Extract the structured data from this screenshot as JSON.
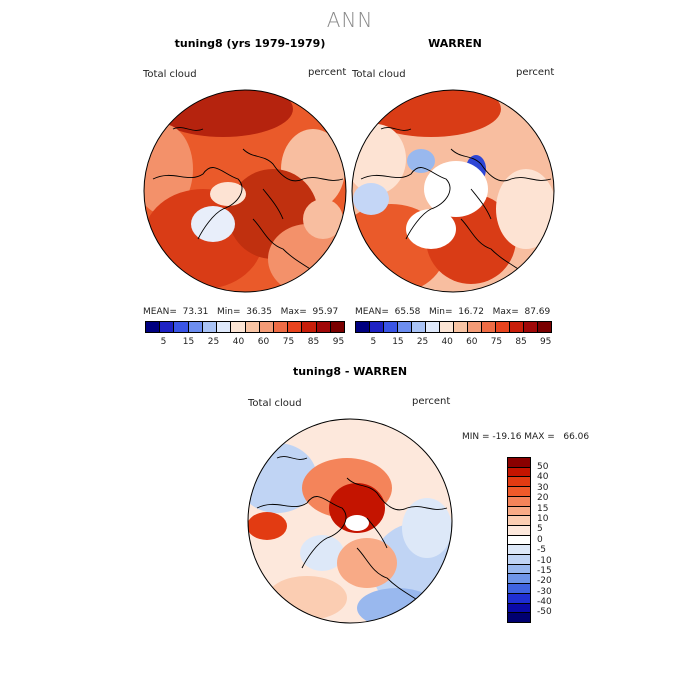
{
  "figure_title": "ANN",
  "panel_left": {
    "title": "tuning8 (yrs 1979-1979)",
    "variable": "Total cloud",
    "units": "percent",
    "stats": {
      "mean_label": "MEAN=",
      "mean": "73.31",
      "min_label": "Min=",
      "min": "36.35",
      "max_label": "Max=",
      "max": "95.97"
    }
  },
  "panel_right": {
    "title": "WARREN",
    "variable": "Total cloud",
    "units": "percent",
    "stats": {
      "mean_label": "MEAN=",
      "mean": "65.58",
      "min_label": "Min=",
      "min": "16.72",
      "max_label": "Max=",
      "max": "87.69"
    }
  },
  "panel_diff": {
    "title": "tuning8 - WARREN",
    "variable": "Total cloud",
    "units": "percent",
    "minmax_text": "MIN = -19.16 MAX =   66.06"
  },
  "colorbar_abs": {
    "ticks": [
      "5",
      "15",
      "25",
      "40",
      "60",
      "75",
      "85",
      "95"
    ],
    "colors": [
      "#000080",
      "#1e22c4",
      "#3a55e6",
      "#6d8ef0",
      "#a9c3f6",
      "#dfe9fb",
      "#fbe4d4",
      "#f8c4a4",
      "#f39b76",
      "#ee6c45",
      "#e8441e",
      "#c81e0a",
      "#a00808",
      "#7a0000"
    ]
  },
  "colorbar_diff": {
    "ticks": [
      "50",
      "40",
      "30",
      "20",
      "15",
      "10",
      "5",
      "0",
      "-5",
      "-10",
      "-15",
      "-20",
      "-30",
      "-40",
      "-50"
    ],
    "colors": [
      "#8a0000",
      "#c41400",
      "#e23b12",
      "#ef5a2a",
      "#f4845a",
      "#f8aa86",
      "#fbcdb2",
      "#fde8dc",
      "#ffffff",
      "#dde8f8",
      "#c0d4f4",
      "#99b8ee",
      "#6e95e8",
      "#3f63e0",
      "#1f2fd2",
      "#0a0aa8",
      "#000070"
    ]
  },
  "map_colors": {
    "deep_red": "#b5230e",
    "red": "#d93c16",
    "orange_red": "#ea5a2a",
    "salmon": "#f3916a",
    "light_salmon": "#f8bea0",
    "pale": "#fde3d3",
    "light_blue": "#c4d6f6",
    "blue": "#6e95e8",
    "dark_blue": "#2e46d6"
  }
}
